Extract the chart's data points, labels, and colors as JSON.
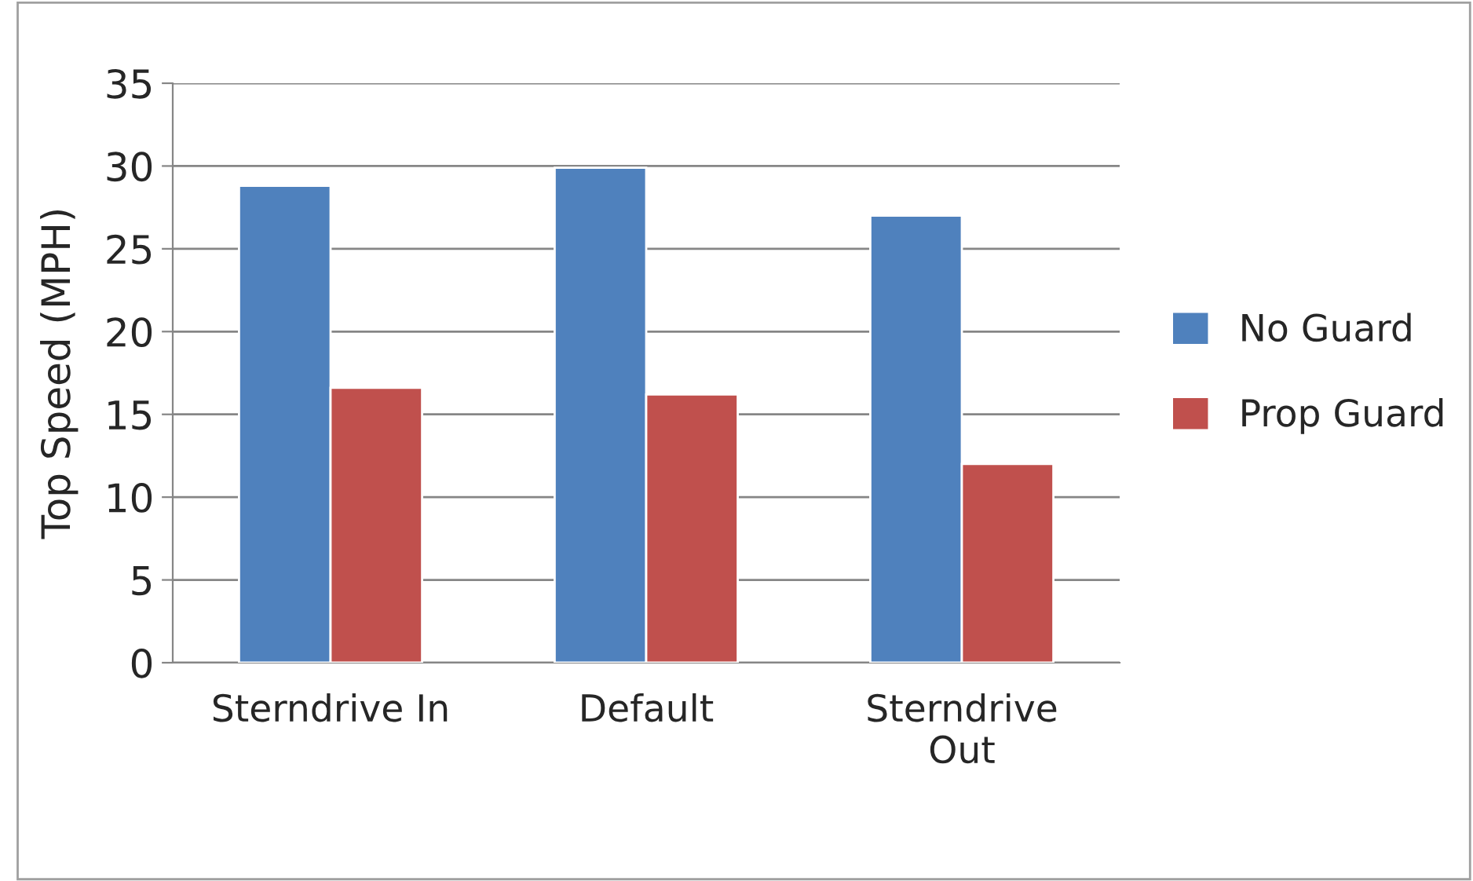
{
  "chart_data": {
    "type": "bar",
    "ylabel": "Top Speed (MPH)",
    "categories": [
      "Sterndrive In",
      "Default",
      "Sterndrive\nOut"
    ],
    "series": [
      {
        "name": "No Guard",
        "color": "#4f81bd",
        "values": [
          28.8,
          29.9,
          27.0
        ]
      },
      {
        "name": "Prop Guard",
        "color": "#c0504d",
        "values": [
          16.6,
          16.2,
          12.0
        ]
      }
    ],
    "ylim": [
      0,
      35
    ],
    "yticks": [
      0,
      5,
      10,
      15,
      20,
      25,
      30,
      35
    ],
    "grid": "y",
    "legend": "right"
  }
}
